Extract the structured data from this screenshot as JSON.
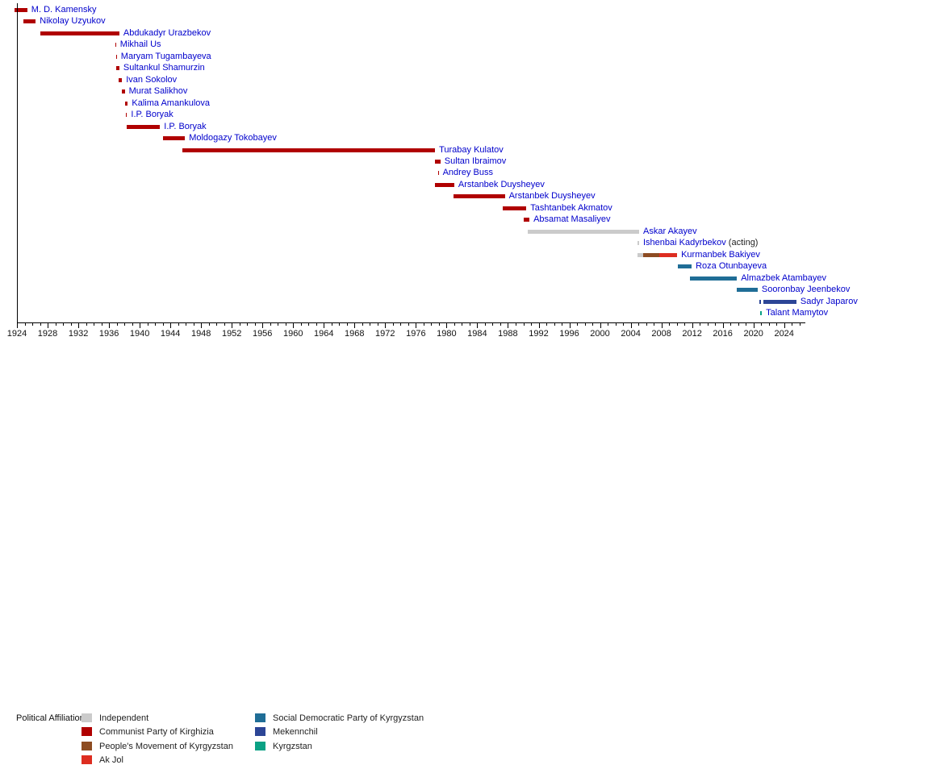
{
  "chart_data": {
    "type": "timeline",
    "orientation": "horizontal-gantt",
    "title": "",
    "xlabel": "",
    "axis": {
      "start_year": 1924,
      "end_year": 2026.8,
      "minor_tick_interval": 1,
      "minor_tick_last": 2026,
      "major_tick_interval": 4,
      "tick_labels": [
        "1924",
        "1928",
        "1932",
        "1936",
        "1940",
        "1944",
        "1948",
        "1952",
        "1956",
        "1960",
        "1964",
        "1968",
        "1972",
        "1976",
        "1980",
        "1984",
        "1988",
        "1992",
        "1996",
        "2000",
        "2004",
        "2008",
        "2012",
        "2016",
        "2020",
        "2024"
      ]
    },
    "parties": {
      "independent": {
        "label": "Independent",
        "color": "#cbcbcb"
      },
      "communist": {
        "label": "Communist Party of Kirghizia",
        "color": "#b00000"
      },
      "pmk": {
        "label": "People's Movement of Kyrgyzstan",
        "color": "#8d4c22"
      },
      "akjol": {
        "label": "Ak Jol",
        "color": "#dd2d20"
      },
      "sdpk": {
        "label": "Social Democratic Party of Kyrgyzstan",
        "color": "#1f6d96"
      },
      "mekennchil": {
        "label": "Mekennchil",
        "color": "#2c4596"
      },
      "kyrgzstan": {
        "label": "Kyrgzstan",
        "color": "#0aa184"
      }
    },
    "rows": [
      {
        "name": "M. D. Kamensky",
        "segments": [
          {
            "from": 1923.7,
            "to": 1925.35,
            "party": "communist"
          }
        ]
      },
      {
        "name": "Nikolay Uzyukov",
        "segments": [
          {
            "from": 1924.8,
            "to": 1926.45,
            "party": "communist"
          }
        ]
      },
      {
        "name": "Abdukadyr Urazbekov",
        "segments": [
          {
            "from": 1927.0,
            "to": 1937.35,
            "party": "communist"
          }
        ]
      },
      {
        "name": "Mikhail Us",
        "segments": [
          {
            "from": 1936.8,
            "to": 1936.92,
            "party": "communist"
          }
        ]
      },
      {
        "name": "Maryam Tugambayeva",
        "segments": [
          {
            "from": 1936.9,
            "to": 1937.02,
            "party": "communist"
          }
        ]
      },
      {
        "name": "Sultankul Shamurzin",
        "segments": [
          {
            "from": 1936.95,
            "to": 1937.35,
            "party": "communist"
          }
        ]
      },
      {
        "name": "Ivan Sokolov",
        "segments": [
          {
            "from": 1937.3,
            "to": 1937.7,
            "party": "communist"
          }
        ]
      },
      {
        "name": "Murat Salikhov",
        "segments": [
          {
            "from": 1937.65,
            "to": 1938.05,
            "party": "communist"
          }
        ]
      },
      {
        "name": "Kalima Amankulova",
        "segments": [
          {
            "from": 1938.1,
            "to": 1938.45,
            "party": "communist"
          }
        ]
      },
      {
        "name": "I.P. Boryak",
        "segments": [
          {
            "from": 1938.2,
            "to": 1938.35,
            "party": "communist"
          }
        ]
      },
      {
        "name": "I.P. Boryak",
        "segments": [
          {
            "from": 1938.3,
            "to": 1942.65,
            "party": "communist"
          }
        ]
      },
      {
        "name": "Moldogazy Tokobayev",
        "segments": [
          {
            "from": 1943.05,
            "to": 1945.9,
            "party": "communist"
          }
        ]
      },
      {
        "name": "Turabay Kulatov",
        "segments": [
          {
            "from": 1945.6,
            "to": 1978.5,
            "party": "communist"
          }
        ]
      },
      {
        "name": "Sultan Ibraimov",
        "segments": [
          {
            "from": 1978.5,
            "to": 1979.2,
            "party": "communist"
          }
        ]
      },
      {
        "name": "Andrey Buss",
        "segments": [
          {
            "from": 1978.85,
            "to": 1978.97,
            "party": "communist"
          }
        ]
      },
      {
        "name": "Arstanbek Duysheyev",
        "segments": [
          {
            "from": 1978.5,
            "to": 1981.0,
            "party": "communist"
          }
        ]
      },
      {
        "name": "Arstanbek Duysheyev",
        "segments": [
          {
            "from": 1980.9,
            "to": 1987.6,
            "party": "communist"
          }
        ]
      },
      {
        "name": "Tashtanbek Akmatov",
        "segments": [
          {
            "from": 1987.35,
            "to": 1990.4,
            "party": "communist"
          }
        ]
      },
      {
        "name": "Absamat Masaliyev",
        "segments": [
          {
            "from": 1990.05,
            "to": 1990.8,
            "party": "communist"
          }
        ]
      },
      {
        "name": "Askar Akayev",
        "segments": [
          {
            "from": 1990.6,
            "to": 2005.1,
            "party": "independent"
          }
        ]
      },
      {
        "name": "Ishenbai Kadyrbekov",
        "suffix": "(acting)",
        "segments": [
          {
            "from": 2004.9,
            "to": 2005.1,
            "party": "independent"
          }
        ]
      },
      {
        "name": "Kurmanbek Bakiyev",
        "segments": [
          {
            "from": 2004.9,
            "to": 2005.6,
            "party": "independent"
          },
          {
            "from": 2005.6,
            "to": 2007.75,
            "party": "pmk"
          },
          {
            "from": 2007.75,
            "to": 2010.05,
            "party": "akjol"
          }
        ]
      },
      {
        "name": "Roza Otunbayeva",
        "segments": [
          {
            "from": 2010.1,
            "to": 2011.95,
            "party": "sdpk"
          }
        ]
      },
      {
        "name": "Almazbek Atambayev",
        "segments": [
          {
            "from": 2011.75,
            "to": 2017.85,
            "party": "sdpk"
          }
        ]
      },
      {
        "name": "Sooronbay Jeenbekov",
        "segments": [
          {
            "from": 2017.85,
            "to": 2020.55,
            "party": "sdpk"
          }
        ]
      },
      {
        "name": "Sadyr Japarov",
        "segments": [
          {
            "from": 2020.8,
            "to": 2021.0,
            "party": "mekennchil"
          },
          {
            "from": 2021.3,
            "to": 2025.6,
            "party": "mekennchil"
          }
        ]
      },
      {
        "name": "Talant Mamytov",
        "segments": [
          {
            "from": 2020.85,
            "to": 2021.1,
            "party": "kyrgzstan"
          }
        ]
      }
    ]
  },
  "legend": {
    "title": "Political Affiliation:",
    "columns": [
      [
        "independent",
        "communist",
        "pmk",
        "akjol"
      ],
      [
        "sdpk",
        "mekennchil",
        "kyrgzstan"
      ]
    ]
  }
}
